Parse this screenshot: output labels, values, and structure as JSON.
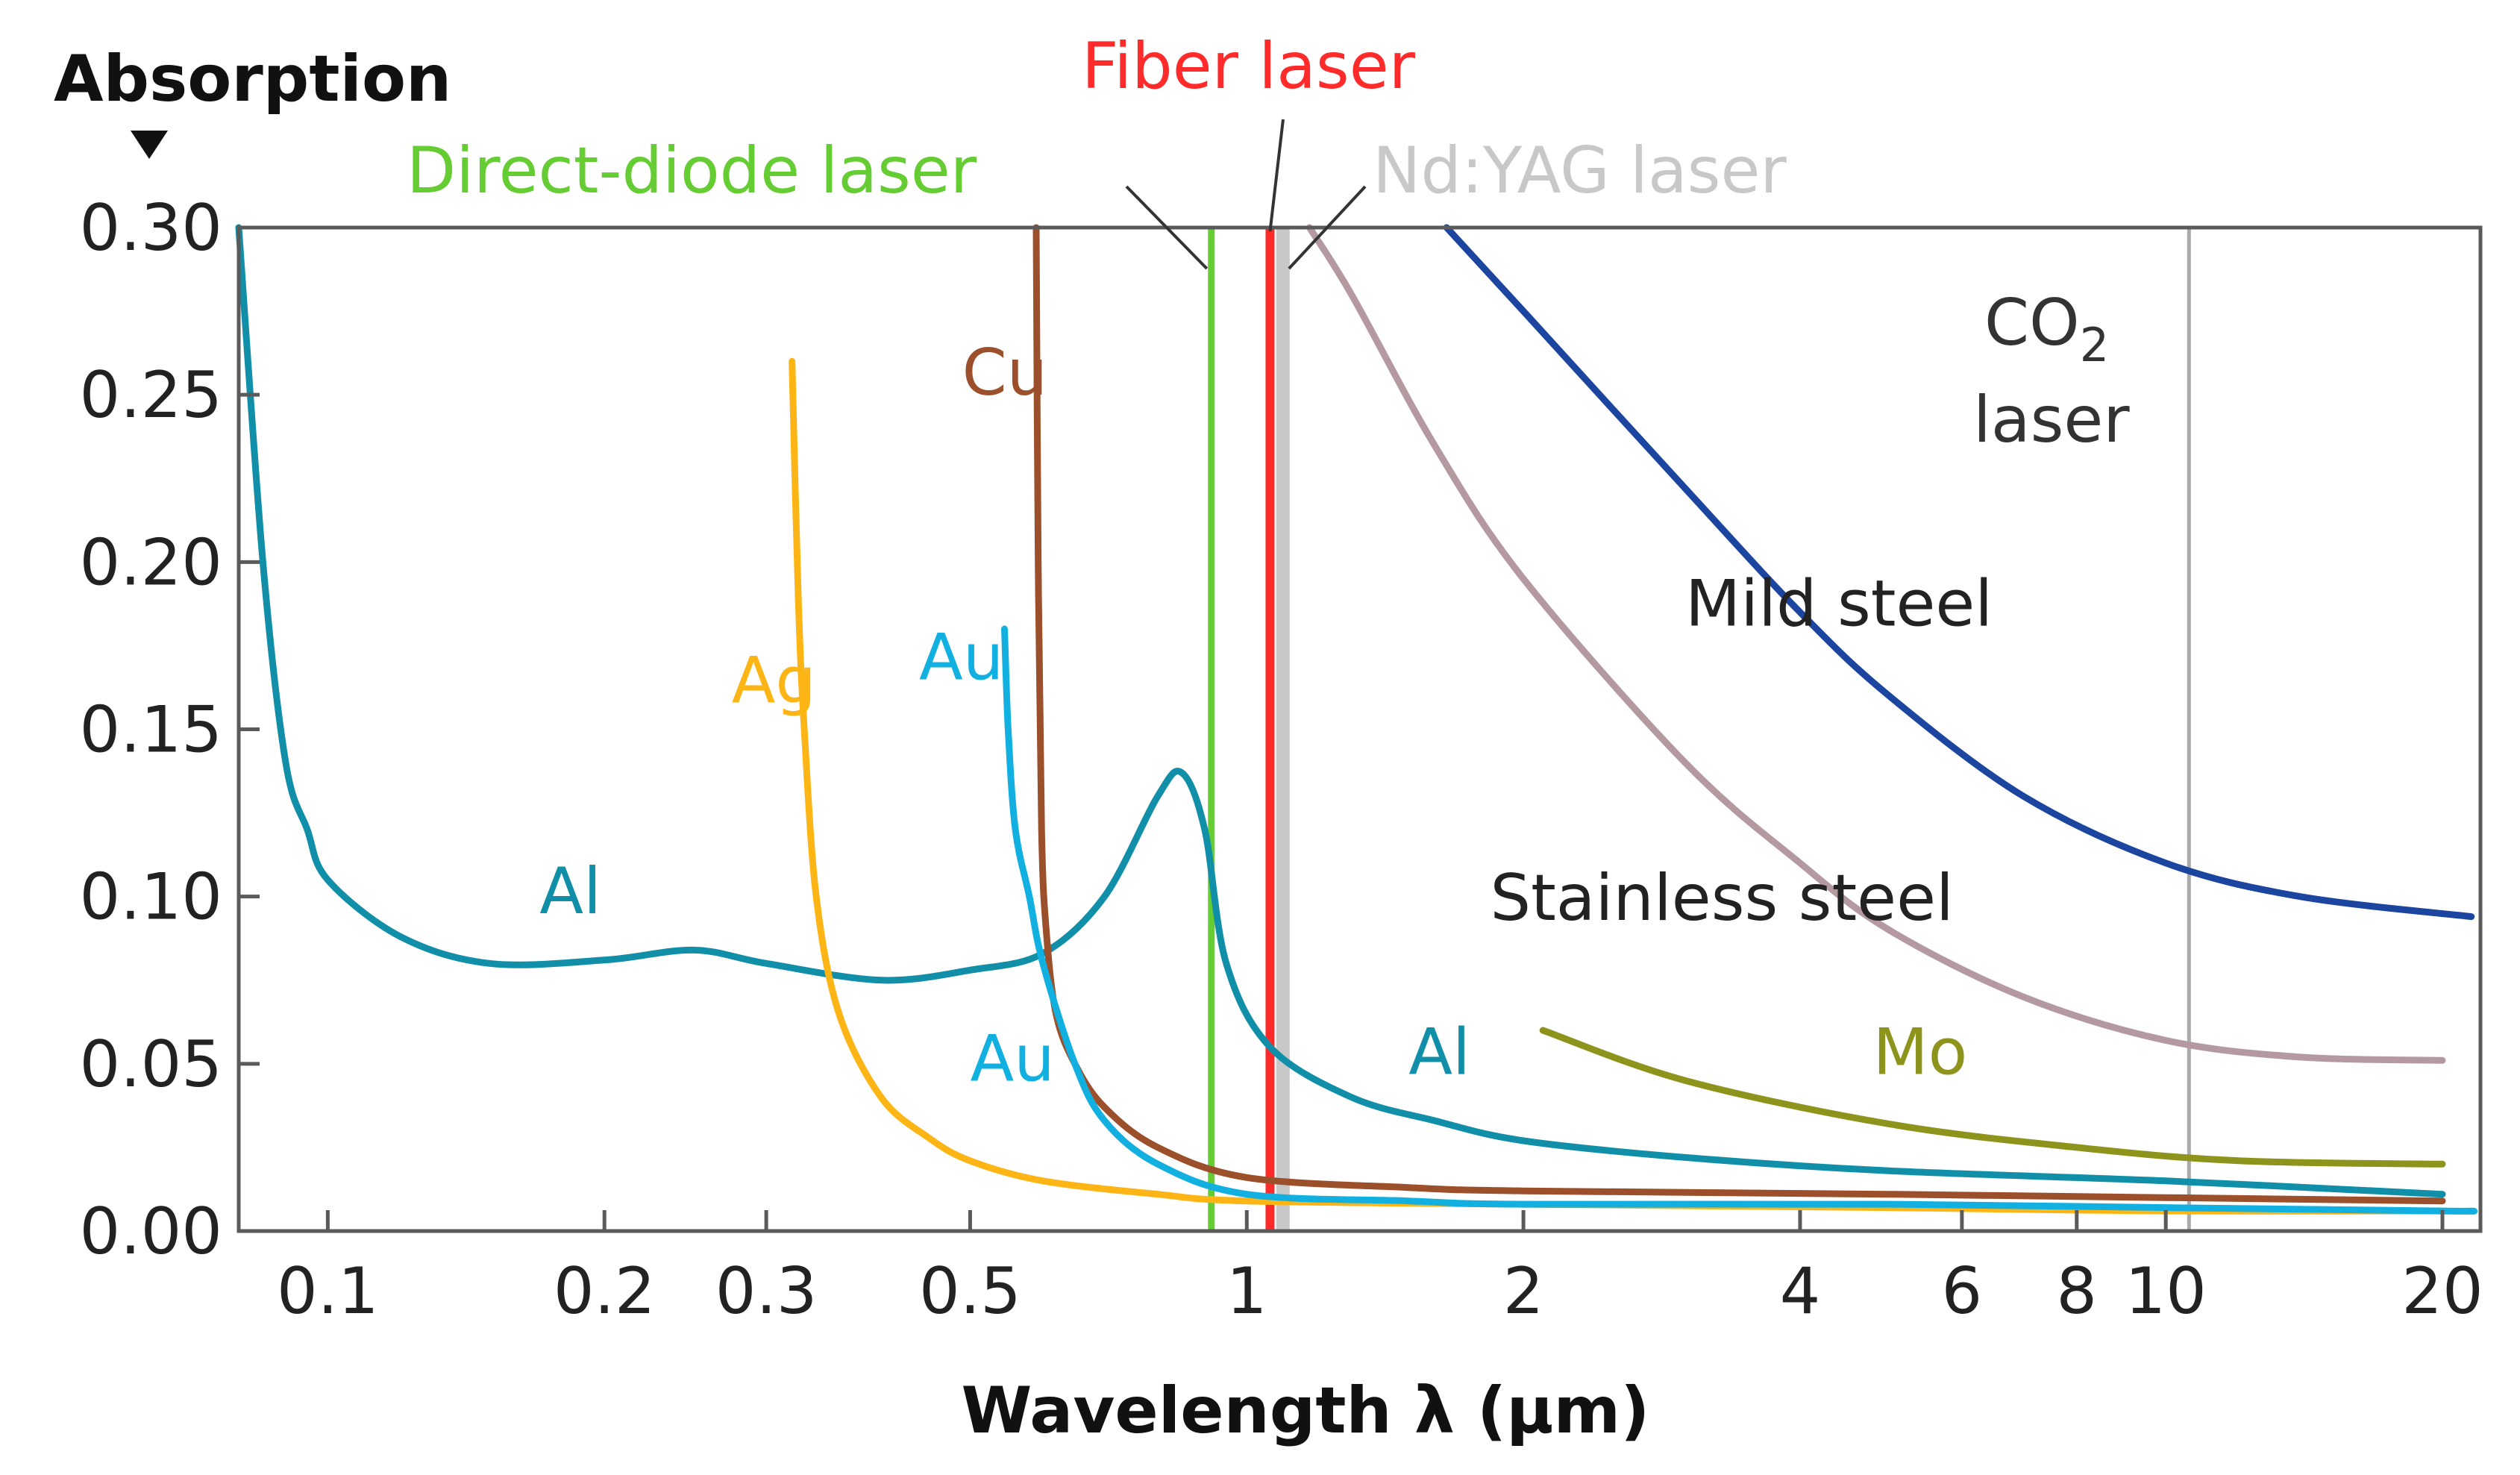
{
  "chart_data": {
    "type": "line",
    "x_scale": "log",
    "xlim": [
      0.08,
      22
    ],
    "ylim": [
      0,
      0.3
    ],
    "ylabel": "Absorption",
    "xlabel": "Wavelength λ (µm)",
    "y_ticks": [
      {
        "v": 0.0,
        "label": "0.00"
      },
      {
        "v": 0.05,
        "label": "0.05"
      },
      {
        "v": 0.1,
        "label": "0.10"
      },
      {
        "v": 0.15,
        "label": "0.15"
      },
      {
        "v": 0.2,
        "label": "0.20"
      },
      {
        "v": 0.25,
        "label": "0.25"
      },
      {
        "v": 0.3,
        "label": "0.30"
      }
    ],
    "x_ticks": [
      {
        "v": 0.1,
        "label": "0.1"
      },
      {
        "v": 0.2,
        "label": "0.2"
      },
      {
        "v": 0.3,
        "label": "0.3"
      },
      {
        "v": 0.5,
        "label": "0.5"
      },
      {
        "v": 1,
        "label": "1"
      },
      {
        "v": 2,
        "label": "2"
      },
      {
        "v": 4,
        "label": "4"
      },
      {
        "v": 6,
        "label": "6"
      },
      {
        "v": 8,
        "label": "8"
      },
      {
        "v": 10,
        "label": "10"
      },
      {
        "v": 20,
        "label": "20"
      }
    ],
    "lasers": [
      {
        "name": "Direct-diode laser",
        "wavelength": 0.915,
        "color": "#66cc33"
      },
      {
        "name": "Fiber laser",
        "wavelength": 1.06,
        "color": "#ff2b2b"
      },
      {
        "name": "Nd:YAG laser",
        "wavelength": 1.095,
        "color": "#c8c8c8"
      },
      {
        "name": "CO2 laser",
        "wavelength": 10.6,
        "color": "#aaaaaa",
        "label_lines": [
          "CO",
          "2",
          "laser"
        ]
      }
    ],
    "series": [
      {
        "name": "Al",
        "color": "#128fa8",
        "labels": [
          {
            "text": "Al",
            "x": 0.17,
            "y": 0.095
          },
          {
            "text": "Al",
            "x": 1.5,
            "y": 0.047
          }
        ],
        "x": [
          0.08,
          0.085,
          0.09,
          0.095,
          0.1,
          0.12,
          0.15,
          0.2,
          0.25,
          0.3,
          0.4,
          0.5,
          0.6,
          0.7,
          0.8,
          0.85,
          0.9,
          0.95,
          1.06,
          1.3,
          1.6,
          2,
          3,
          5,
          10,
          20
        ],
        "y": [
          0.3,
          0.2,
          0.14,
          0.12,
          0.105,
          0.088,
          0.08,
          0.081,
          0.084,
          0.08,
          0.075,
          0.078,
          0.083,
          0.1,
          0.13,
          0.137,
          0.12,
          0.08,
          0.055,
          0.04,
          0.033,
          0.027,
          0.022,
          0.018,
          0.015,
          0.011
        ]
      },
      {
        "name": "Ag",
        "color": "#fdb515",
        "labels": [
          {
            "text": "Ag",
            "x": 0.275,
            "y": 0.158
          }
        ],
        "x": [
          0.32,
          0.325,
          0.33,
          0.34,
          0.36,
          0.4,
          0.45,
          0.5,
          0.6,
          0.8,
          1,
          2,
          5,
          10,
          20
        ],
        "y": [
          0.26,
          0.19,
          0.15,
          0.1,
          0.065,
          0.04,
          0.028,
          0.021,
          0.015,
          0.011,
          0.009,
          0.008,
          0.007,
          0.006,
          0.006
        ]
      },
      {
        "name": "Cu",
        "color": "#9b4f2a",
        "labels": [
          {
            "text": "Cu",
            "x": 0.49,
            "y": 0.25
          }
        ],
        "x": [
          0.59,
          0.593,
          0.598,
          0.605,
          0.62,
          0.65,
          0.7,
          0.8,
          1,
          1.5,
          2,
          5,
          10,
          20
        ],
        "y": [
          0.3,
          0.2,
          0.12,
          0.09,
          0.065,
          0.05,
          0.037,
          0.025,
          0.016,
          0.013,
          0.012,
          0.011,
          0.01,
          0.009
        ]
      },
      {
        "name": "Au",
        "color": "#12b0e0",
        "labels": [
          {
            "text": "Au",
            "x": 0.44,
            "y": 0.165
          },
          {
            "text": "Au",
            "x": 0.5,
            "y": 0.045
          }
        ],
        "x": [
          0.545,
          0.55,
          0.56,
          0.58,
          0.6,
          0.65,
          0.7,
          0.8,
          1,
          1.5,
          2,
          5,
          10,
          20,
          21.5
        ],
        "y": [
          0.18,
          0.15,
          0.12,
          0.1,
          0.08,
          0.05,
          0.033,
          0.02,
          0.011,
          0.009,
          0.008,
          0.008,
          0.007,
          0.006,
          0.006
        ]
      },
      {
        "name": "Mo",
        "color": "#8e931c",
        "labels": [
          {
            "text": "Mo",
            "x": 4.8,
            "y": 0.047
          }
        ],
        "x": [
          2.1,
          3,
          5,
          8,
          12,
          20
        ],
        "y": [
          0.06,
          0.045,
          0.032,
          0.025,
          0.021,
          0.02
        ]
      },
      {
        "name": "Stainless steel",
        "color": "#b49aa0",
        "labels": [
          {
            "text": "Stainless steel",
            "x": 1.84,
            "y": 0.093
          }
        ],
        "x": [
          1.17,
          1.3,
          1.6,
          2,
          3,
          4,
          5,
          7,
          10,
          14,
          20
        ],
        "y": [
          0.3,
          0.28,
          0.235,
          0.195,
          0.14,
          0.11,
          0.09,
          0.07,
          0.057,
          0.052,
          0.051
        ]
      },
      {
        "name": "Mild steel",
        "color": "#1c45a0",
        "labels": [
          {
            "text": "Mild steel",
            "x": 3.0,
            "y": 0.181
          }
        ],
        "x": [
          1.65,
          2,
          3,
          4,
          5,
          7,
          10,
          14,
          21.5
        ],
        "y": [
          0.3,
          0.275,
          0.222,
          0.185,
          0.16,
          0.13,
          0.11,
          0.1,
          0.094
        ]
      }
    ]
  }
}
